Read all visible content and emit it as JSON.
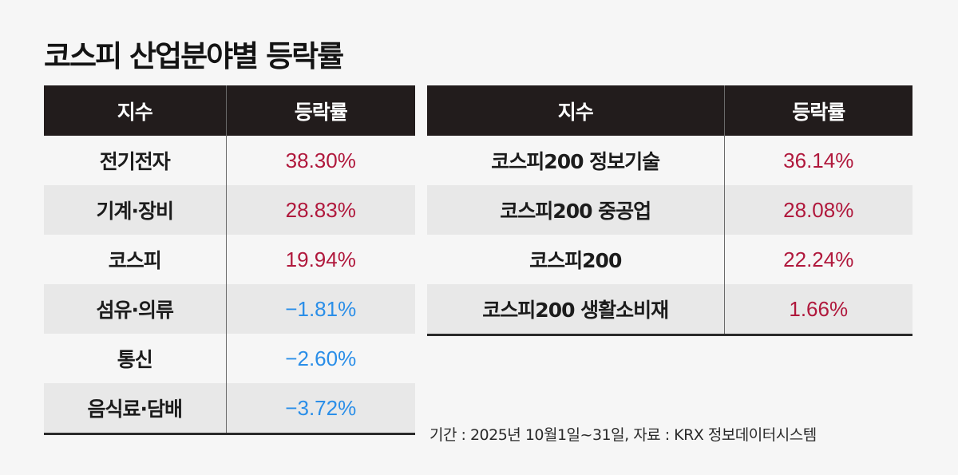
{
  "title": "코스피 산업분야별 등락률",
  "colors": {
    "positive": "#b0183c",
    "negative": "#2a8ee8",
    "header_bg": "#221c1c"
  },
  "chart_data": {
    "type": "table",
    "title": "코스피 산업분야별 등락률",
    "tables": [
      {
        "headers": [
          "지수",
          "등락률"
        ],
        "rows": [
          {
            "name": "전기전자",
            "value": "38.30%",
            "sign": "pos"
          },
          {
            "name": "기계·장비",
            "value": "28.83%",
            "sign": "pos"
          },
          {
            "name": "코스피",
            "value": "19.94%",
            "sign": "pos"
          },
          {
            "name": "섬유·의류",
            "value": "−1.81%",
            "sign": "neg"
          },
          {
            "name": "통신",
            "value": "−2.60%",
            "sign": "neg"
          },
          {
            "name": "음식료·담배",
            "value": "−3.72%",
            "sign": "neg"
          }
        ]
      },
      {
        "headers": [
          "지수",
          "등락률"
        ],
        "rows": [
          {
            "name": "코스피200 정보기술",
            "value": "36.14%",
            "sign": "pos"
          },
          {
            "name": "코스피200 중공업",
            "value": "28.08%",
            "sign": "pos"
          },
          {
            "name": "코스피200",
            "value": "22.24%",
            "sign": "pos"
          },
          {
            "name": "코스피200 생활소비재",
            "value": "1.66%",
            "sign": "pos"
          }
        ]
      }
    ]
  },
  "note": "기간 : 2025년 10월1일~31일, 자료 : KRX 정보데이터시스템"
}
